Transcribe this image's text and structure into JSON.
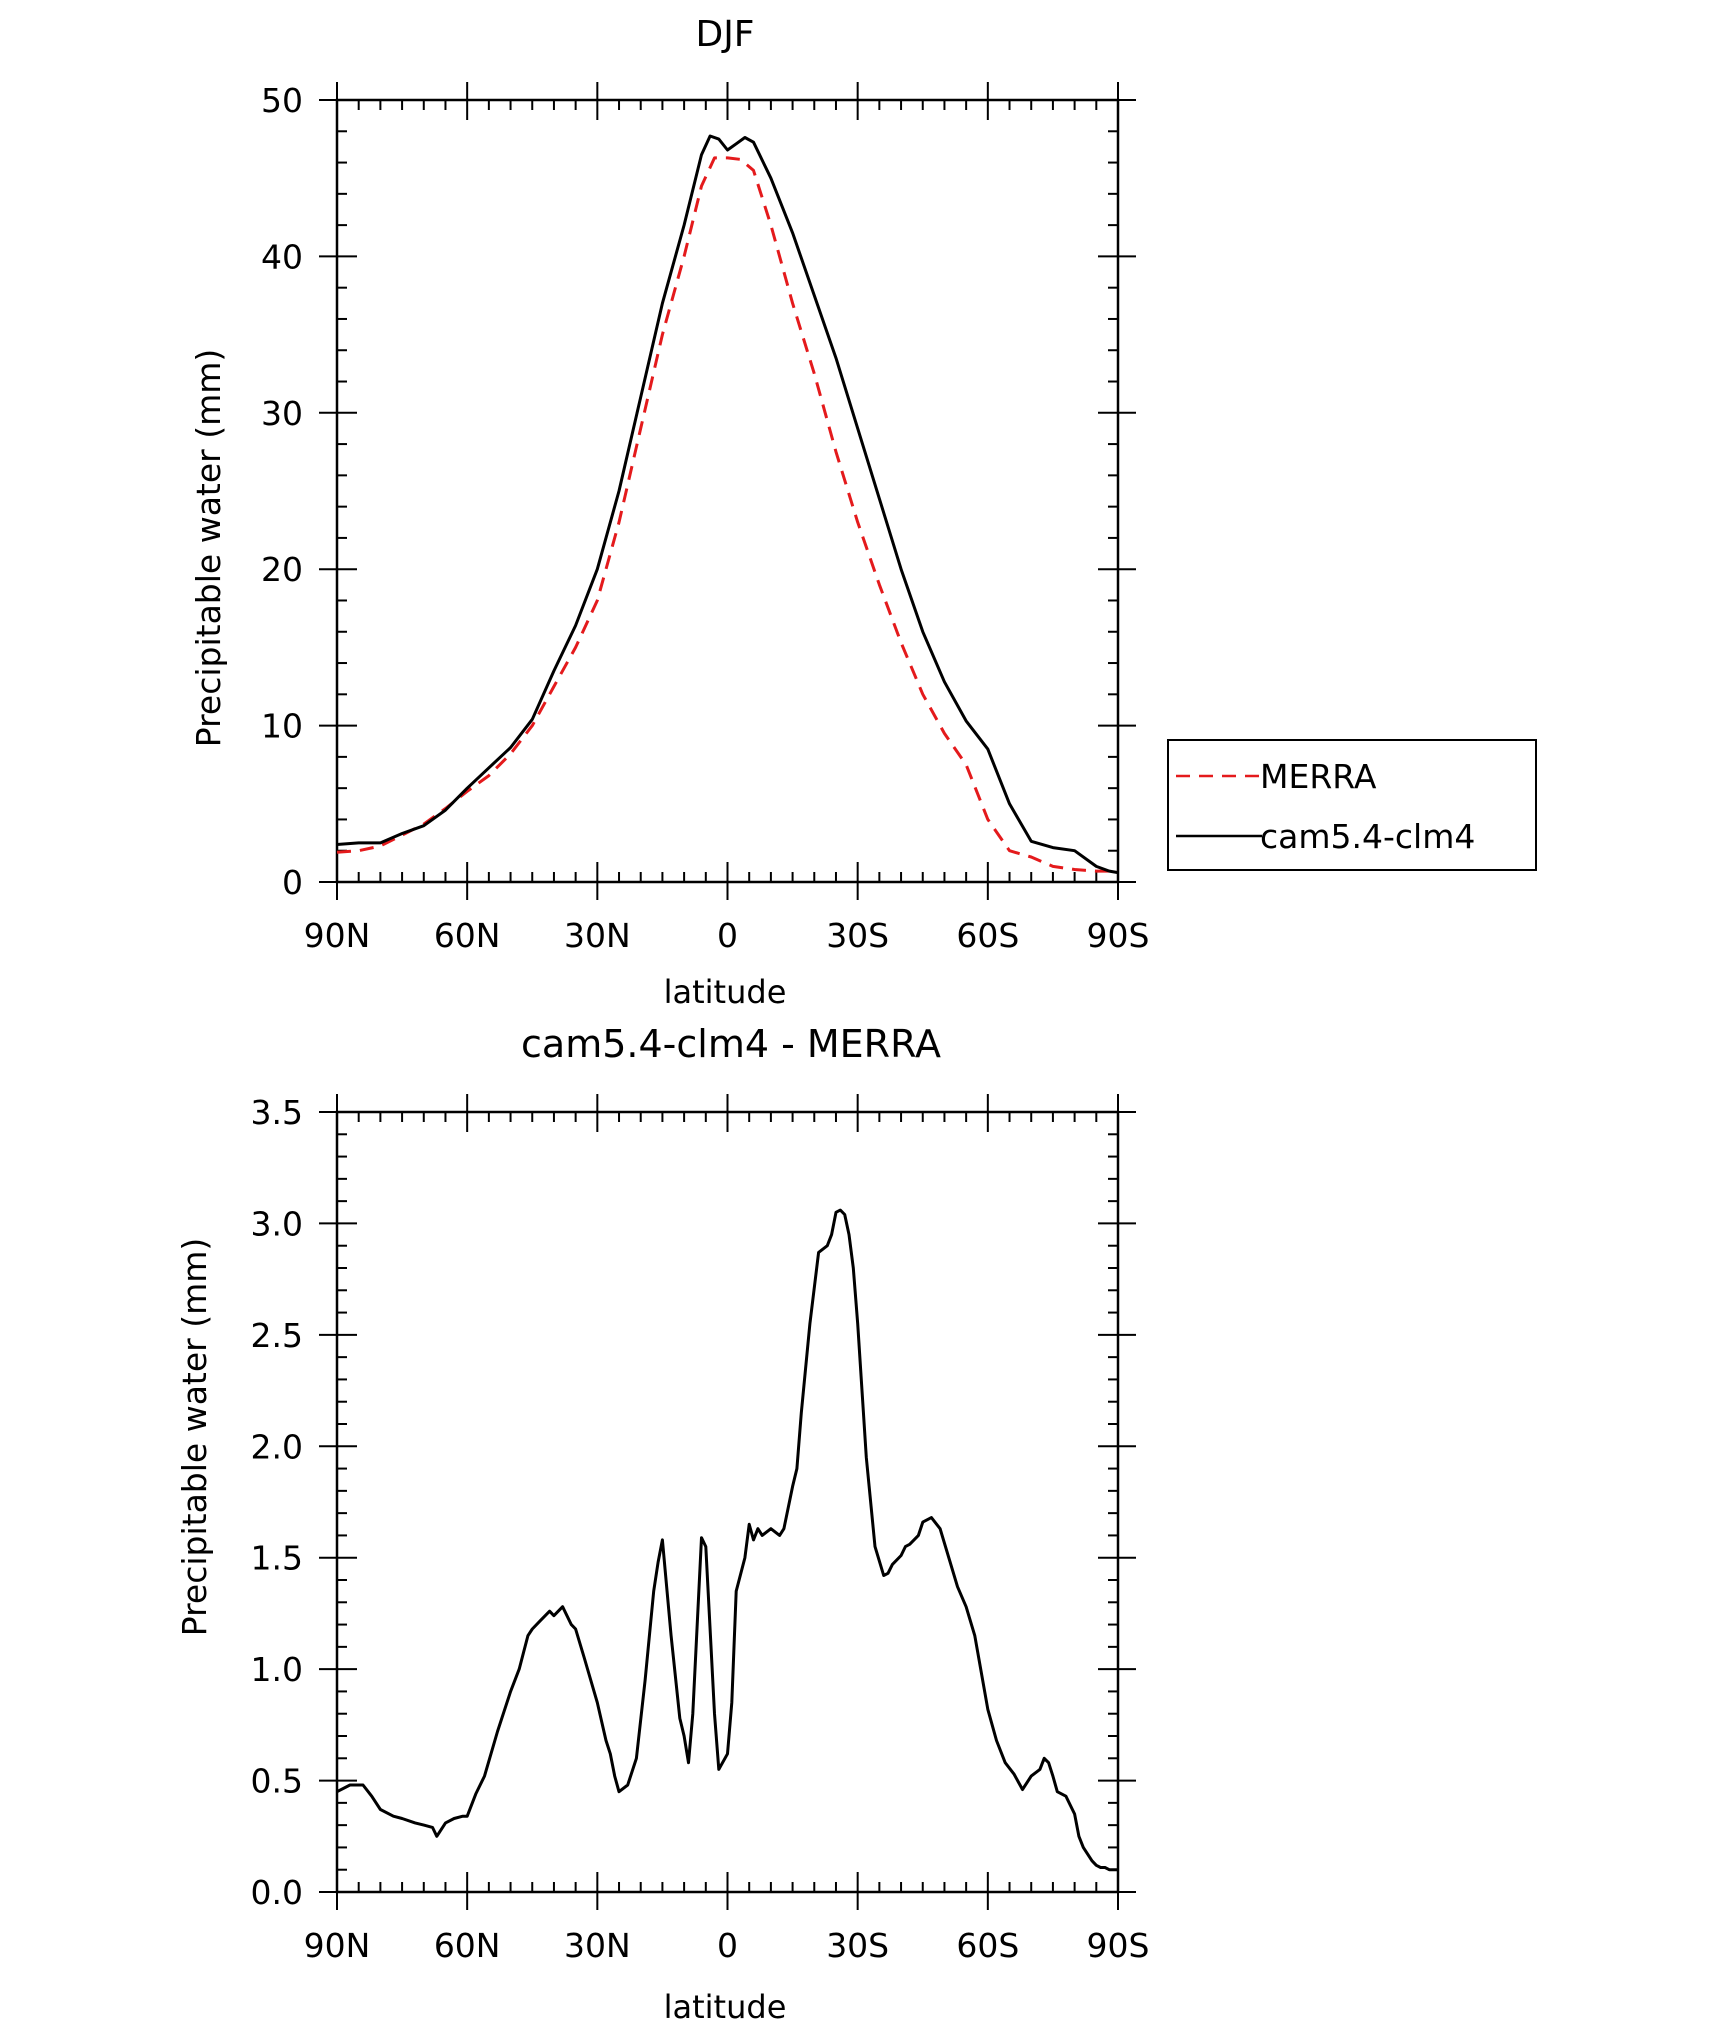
{
  "colors": {
    "merra": "#e41a1c",
    "model": "#000000",
    "axis": "#000000"
  },
  "chart_data": [
    {
      "type": "line",
      "title": "DJF",
      "xlabel": "latitude",
      "ylabel": "Precipitable water (mm)",
      "xlim": [
        90,
        -90
      ],
      "ylim": [
        0,
        50
      ],
      "xticks": [
        90,
        60,
        30,
        0,
        -30,
        -60,
        -90
      ],
      "xtick_labels": [
        "90N",
        "60N",
        "30N",
        "0",
        "30S",
        "60S",
        "90S"
      ],
      "yticks": [
        0,
        10,
        20,
        30,
        40,
        50
      ],
      "ytick_labels": [
        "0",
        "10",
        "20",
        "30",
        "40",
        "50"
      ],
      "grid": false,
      "legend": {
        "placement": "right",
        "entries": [
          "MERRA",
          "cam5.4-clm4"
        ]
      },
      "series": [
        {
          "name": "MERRA",
          "style": "dashed",
          "x": [
            90,
            85,
            80,
            75,
            70,
            65,
            60,
            55,
            50,
            45,
            40,
            35,
            30,
            25,
            20,
            15,
            10,
            6,
            3,
            0,
            -3,
            -6,
            -10,
            -15,
            -20,
            -25,
            -30,
            -35,
            -40,
            -45,
            -50,
            -55,
            -60,
            -65,
            -70,
            -75,
            -80,
            -85,
            -88,
            -90
          ],
          "y": [
            1.9,
            2.0,
            2.3,
            3.0,
            3.7,
            4.7,
            5.8,
            6.8,
            8.2,
            10.0,
            12.5,
            15.0,
            18.0,
            23.0,
            29.0,
            35.0,
            40.0,
            44.5,
            46.3,
            46.3,
            46.2,
            45.5,
            42.0,
            37.0,
            32.5,
            27.5,
            23.0,
            19.0,
            15.3,
            12.0,
            9.5,
            7.5,
            4.0,
            2.0,
            1.6,
            1.0,
            0.8,
            0.7,
            0.7,
            0.7
          ]
        },
        {
          "name": "cam5.4-clm4",
          "style": "solid",
          "x": [
            90,
            85,
            80,
            75,
            70,
            65,
            60,
            55,
            50,
            45,
            40,
            35,
            30,
            25,
            20,
            15,
            10,
            6,
            4,
            2,
            0,
            -2,
            -4,
            -6,
            -10,
            -15,
            -20,
            -25,
            -30,
            -35,
            -40,
            -45,
            -50,
            -55,
            -60,
            -65,
            -70,
            -75,
            -80,
            -85,
            -88,
            -90
          ],
          "y": [
            2.4,
            2.5,
            2.5,
            3.1,
            3.6,
            4.6,
            6.0,
            7.3,
            8.6,
            10.4,
            13.5,
            16.4,
            20.0,
            25.0,
            31.0,
            37.0,
            42.0,
            46.5,
            47.7,
            47.5,
            46.8,
            47.2,
            47.6,
            47.3,
            45.0,
            41.5,
            37.5,
            33.5,
            29.0,
            24.5,
            20.0,
            16.0,
            12.8,
            10.3,
            8.5,
            5.0,
            2.6,
            2.2,
            2.0,
            1.0,
            0.7,
            0.6
          ]
        }
      ]
    },
    {
      "type": "line",
      "title": "cam5.4-clm4 - MERRA",
      "xlabel": "latitude",
      "ylabel": "Precipitable water (mm)",
      "xlim": [
        90,
        -90
      ],
      "ylim": [
        0,
        3.5
      ],
      "xticks": [
        90,
        60,
        30,
        0,
        -30,
        -60,
        -90
      ],
      "xtick_labels": [
        "90N",
        "60N",
        "30N",
        "0",
        "30S",
        "60S",
        "90S"
      ],
      "yticks": [
        0,
        0.5,
        1.0,
        1.5,
        2.0,
        2.5,
        3.0,
        3.5
      ],
      "ytick_labels": [
        "0.0",
        "0.5",
        "1.0",
        "1.5",
        "2.0",
        "2.5",
        "3.0",
        "3.5"
      ],
      "grid": false,
      "series": [
        {
          "style": "solid",
          "x": [
            90,
            87,
            84,
            82,
            80,
            77,
            75,
            72,
            70,
            68,
            67,
            65,
            63,
            61,
            60,
            58,
            56,
            53,
            50,
            48,
            46,
            45,
            43,
            41,
            40,
            38,
            36,
            35,
            33,
            30,
            28,
            27,
            26,
            25,
            23,
            21,
            19,
            17,
            16,
            15,
            13,
            11,
            10,
            9,
            8,
            6,
            5,
            3,
            2,
            0,
            -1,
            -2,
            -4,
            -5,
            -6,
            -7,
            -8,
            -10,
            -12,
            -13,
            -15,
            -16,
            -17,
            -19,
            -21,
            -23,
            -24,
            -25,
            -26,
            -27,
            -28,
            -29,
            -30,
            -32,
            -34,
            -36,
            -37,
            -38,
            -40,
            -41,
            -42,
            -44,
            -45,
            -47,
            -49,
            -51,
            -53,
            -55,
            -57,
            -60,
            -62,
            -64,
            -66,
            -68,
            -70,
            -72,
            -73,
            -74,
            -75,
            -76,
            -78,
            -80,
            -81,
            -82,
            -84,
            -85,
            -86,
            -87,
            -88,
            -89,
            -90
          ],
          "y": [
            0.45,
            0.48,
            0.48,
            0.43,
            0.37,
            0.34,
            0.33,
            0.31,
            0.3,
            0.29,
            0.25,
            0.31,
            0.33,
            0.34,
            0.34,
            0.44,
            0.52,
            0.72,
            0.9,
            1.0,
            1.15,
            1.18,
            1.22,
            1.26,
            1.24,
            1.28,
            1.2,
            1.18,
            1.05,
            0.85,
            0.68,
            0.62,
            0.52,
            0.45,
            0.48,
            0.6,
            0.95,
            1.35,
            1.48,
            1.58,
            1.15,
            0.78,
            0.7,
            0.58,
            0.8,
            1.59,
            1.55,
            0.8,
            0.55,
            0.62,
            0.85,
            1.35,
            1.5,
            1.65,
            1.58,
            1.63,
            1.6,
            1.63,
            1.6,
            1.63,
            1.82,
            1.9,
            2.15,
            2.55,
            2.87,
            2.9,
            2.95,
            3.05,
            3.06,
            3.04,
            2.95,
            2.8,
            2.55,
            1.95,
            1.55,
            1.42,
            1.43,
            1.47,
            1.51,
            1.55,
            1.56,
            1.6,
            1.66,
            1.68,
            1.63,
            1.5,
            1.37,
            1.28,
            1.15,
            0.82,
            0.68,
            0.58,
            0.53,
            0.46,
            0.52,
            0.55,
            0.6,
            0.58,
            0.52,
            0.45,
            0.43,
            0.35,
            0.25,
            0.2,
            0.14,
            0.12,
            0.11,
            0.11,
            0.1,
            0.1,
            0.1
          ]
        }
      ]
    }
  ]
}
